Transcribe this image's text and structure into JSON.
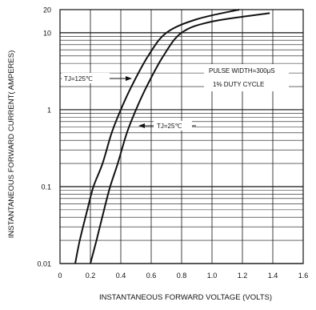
{
  "chart_data": {
    "type": "line",
    "title": "",
    "xlabel": "INSTANTANEOUS FORWARD VOLTAGE (VOLTS)",
    "ylabel": "INSTANTANEOUS FORWARD CURRENT( AMPERES)",
    "xscale": "linear",
    "yscale": "log",
    "xlim": [
      0,
      1.6
    ],
    "ylim": [
      0.01,
      20
    ],
    "grid": true,
    "x_ticks": [
      "0",
      "0.2",
      "0.4",
      "0.6",
      "0.8",
      "1.0",
      "1.2",
      "1.4",
      "1.6"
    ],
    "y_ticks": [
      {
        "value": 0.01,
        "label": "0.01"
      },
      {
        "value": 0.1,
        "label": "0.1"
      },
      {
        "value": 1,
        "label": "1"
      },
      {
        "value": 10,
        "label": "10"
      },
      {
        "value": 20,
        "label": "20"
      }
    ],
    "series": [
      {
        "name": "TJ=125℃",
        "points": [
          [
            0.1,
            0.01
          ],
          [
            0.13,
            0.02
          ],
          [
            0.18,
            0.05
          ],
          [
            0.22,
            0.1
          ],
          [
            0.28,
            0.2
          ],
          [
            0.34,
            0.5
          ],
          [
            0.4,
            1.0
          ],
          [
            0.47,
            2.0
          ],
          [
            0.58,
            5.0
          ],
          [
            0.7,
            10
          ],
          [
            0.9,
            15
          ],
          [
            1.18,
            20
          ]
        ]
      },
      {
        "name": "TJ=25℃",
        "points": [
          [
            0.2,
            0.01
          ],
          [
            0.24,
            0.02
          ],
          [
            0.29,
            0.05
          ],
          [
            0.33,
            0.1
          ],
          [
            0.38,
            0.2
          ],
          [
            0.44,
            0.5
          ],
          [
            0.5,
            1.0
          ],
          [
            0.57,
            2.0
          ],
          [
            0.68,
            5.0
          ],
          [
            0.8,
            10
          ],
          [
            1.0,
            14
          ],
          [
            1.38,
            18
          ]
        ]
      }
    ],
    "annotations": {
      "pulse_width": "PULSE WIDTH=300μS",
      "duty_cycle": "1% DUTY CYCLE",
      "curve1_label": "TJ=125℃",
      "curve2_label": "TJ=25℃"
    },
    "colors": {
      "line": "#111111",
      "grid": "#111111",
      "background": "#ffffff"
    }
  }
}
